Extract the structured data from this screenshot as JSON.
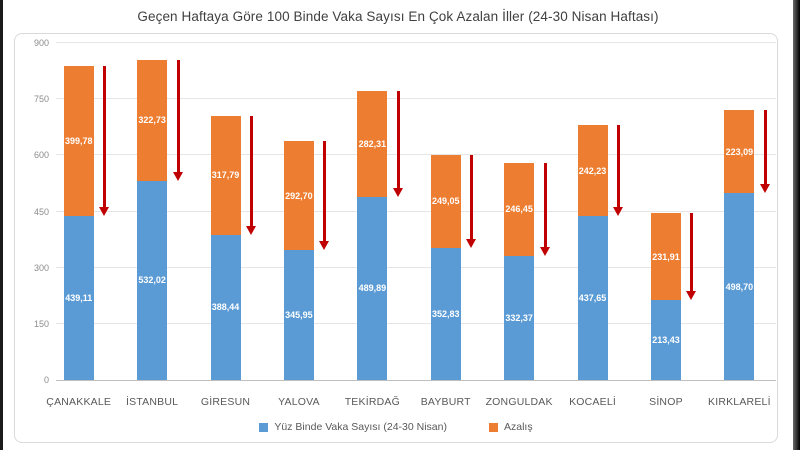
{
  "chart_data": {
    "type": "bar",
    "stacked": true,
    "title": "Geçen Haftaya Göre 100 Binde Vaka Sayısı En Çok Azalan İller (24-30 Nisan Haftası)",
    "categories": [
      "ÇANAKKALE",
      "İSTANBUL",
      "GİRESUN",
      "YALOVA",
      "TEKİRDAĞ",
      "BAYBURT",
      "ZONGULDAK",
      "KOCAELİ",
      "SİNOP",
      "KIRKLARELİ"
    ],
    "series": [
      {
        "name": "Yüz Binde Vaka Sayısı (24-30 Nisan)",
        "color": "#5B9BD5",
        "values": [
          439.11,
          532.02,
          388.44,
          345.95,
          489.89,
          352.83,
          332.37,
          437.65,
          213.43,
          498.7
        ],
        "labels": [
          "439,11",
          "532,02",
          "388,44",
          "345,95",
          "489,89",
          "352,83",
          "332,37",
          "437,65",
          "213,43",
          "498,70"
        ]
      },
      {
        "name": "Azalış",
        "color": "#ED7D31",
        "values": [
          399.78,
          322.73,
          317.79,
          292.7,
          282.31,
          249.05,
          246.45,
          242.23,
          231.91,
          223.09
        ],
        "labels": [
          "399,78",
          "322,73",
          "317,79",
          "292,70",
          "282,31",
          "249,05",
          "246,45",
          "242,23",
          "231,91",
          "223,09"
        ]
      }
    ],
    "ylim": [
      0,
      900
    ],
    "yticks": [
      0,
      150,
      300,
      450,
      600,
      750,
      900
    ],
    "grid": true,
    "legend_position": "bottom",
    "annotation": {
      "shape": "down-arrow",
      "color": "#C00000",
      "meaning": "decrease from previous week, spans the Azalış segment of each bar"
    }
  }
}
